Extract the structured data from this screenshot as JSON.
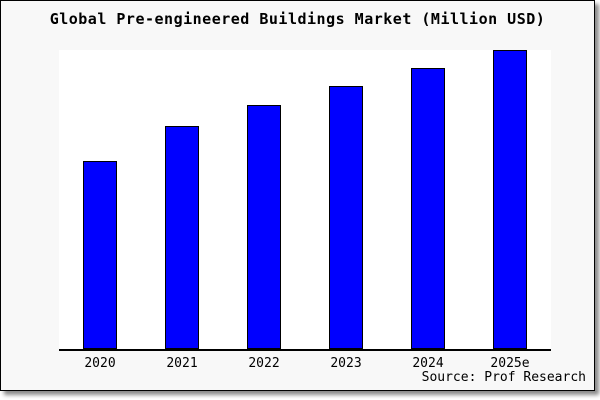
{
  "title": "Global Pre-engineered Buildings Market (Million USD)",
  "source": "Source: Prof Research",
  "colors": {
    "panel_background": "#f8f8f8",
    "plot_background": "#ffffff",
    "bar_fill": "#0000ff",
    "bar_border": "#000000",
    "axis": "#000000",
    "panel_border": "#000000",
    "shadow": "#8a8a8a",
    "text": "#000000"
  },
  "chart_data": {
    "type": "bar",
    "title": "Global Pre-engineered Buildings Market (Million USD)",
    "categories": [
      "2020",
      "2021",
      "2022",
      "2023",
      "2024",
      "2025e"
    ],
    "values": [
      63,
      74.5,
      81.5,
      88,
      94,
      100
    ],
    "values_note": "no y-axis or data labels shown in image; values estimated from bar heights relative to 2025e = 100",
    "xlabel": "",
    "ylabel": "",
    "ylim": [
      0,
      100
    ],
    "grid": false,
    "legend": "none",
    "bar_color": "#0000ff",
    "source_label": "Source: Prof Research"
  }
}
